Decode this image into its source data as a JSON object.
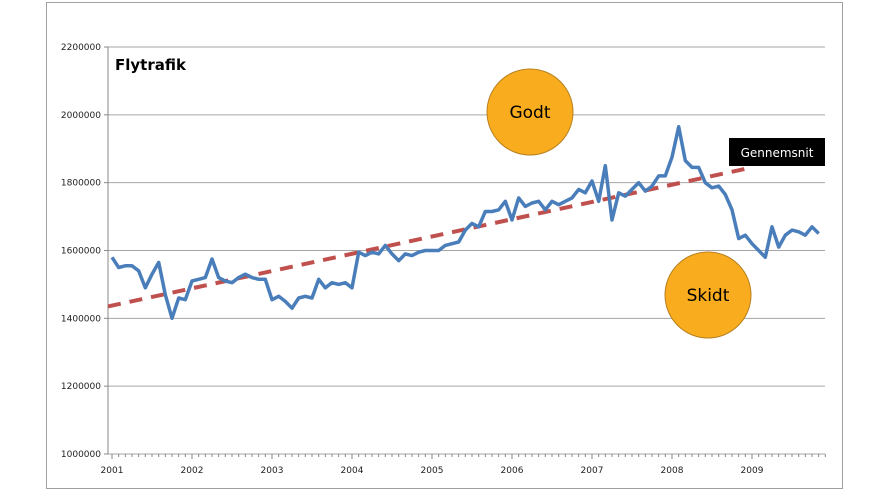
{
  "chart_data": {
    "type": "line",
    "title": "Flytrafik",
    "xlabel": "",
    "ylabel": "",
    "ylim": [
      1000000,
      2200000
    ],
    "y_ticks": [
      "1000000",
      "1200000",
      "1400000",
      "1600000",
      "1800000",
      "2000000",
      "2200000"
    ],
    "x_tick_labels": [
      "2001",
      "2002",
      "2003",
      "2004",
      "2005",
      "2006",
      "2007",
      "2008",
      "2009"
    ],
    "x_start": "2001-01",
    "x_interval": "monthly",
    "grid": true,
    "series": [
      {
        "name": "Flytrafik",
        "color": "#4a7ebb",
        "values": [
          1580000,
          1550000,
          1555000,
          1555000,
          1540000,
          1490000,
          1530000,
          1565000,
          1470000,
          1400000,
          1460000,
          1455000,
          1510000,
          1515000,
          1520000,
          1575000,
          1520000,
          1510000,
          1505000,
          1520000,
          1530000,
          1520000,
          1515000,
          1515000,
          1455000,
          1465000,
          1450000,
          1430000,
          1460000,
          1465000,
          1460000,
          1515000,
          1490000,
          1505000,
          1500000,
          1505000,
          1490000,
          1595000,
          1585000,
          1595000,
          1590000,
          1615000,
          1590000,
          1570000,
          1590000,
          1585000,
          1595000,
          1600000,
          1600000,
          1600000,
          1615000,
          1620000,
          1625000,
          1660000,
          1680000,
          1670000,
          1715000,
          1715000,
          1720000,
          1745000,
          1690000,
          1755000,
          1730000,
          1740000,
          1745000,
          1720000,
          1745000,
          1735000,
          1745000,
          1755000,
          1780000,
          1770000,
          1805000,
          1745000,
          1850000,
          1690000,
          1770000,
          1760000,
          1780000,
          1800000,
          1775000,
          1790000,
          1820000,
          1820000,
          1875000,
          1965000,
          1865000,
          1845000,
          1845000,
          1800000,
          1785000,
          1790000,
          1765000,
          1720000,
          1635000,
          1645000,
          1620000,
          1600000,
          1580000,
          1670000,
          1610000,
          1645000,
          1660000,
          1655000,
          1645000,
          1670000,
          1650000
        ]
      },
      {
        "name": "Gennemsnit",
        "color": "#c0504d",
        "style": "dashed",
        "trend_start": 1435000,
        "trend_end": 1845000,
        "trend_end_month": 96
      }
    ],
    "annotations": [
      {
        "text": "Godt",
        "color": "#f9ac1e",
        "near_month": 76,
        "near_value": 2000000
      },
      {
        "text": "Skidt",
        "color": "#f9ac1e",
        "near_month": 95,
        "near_value": 1470000
      },
      {
        "text": "Gennemsnit",
        "color": "#000000"
      }
    ]
  }
}
